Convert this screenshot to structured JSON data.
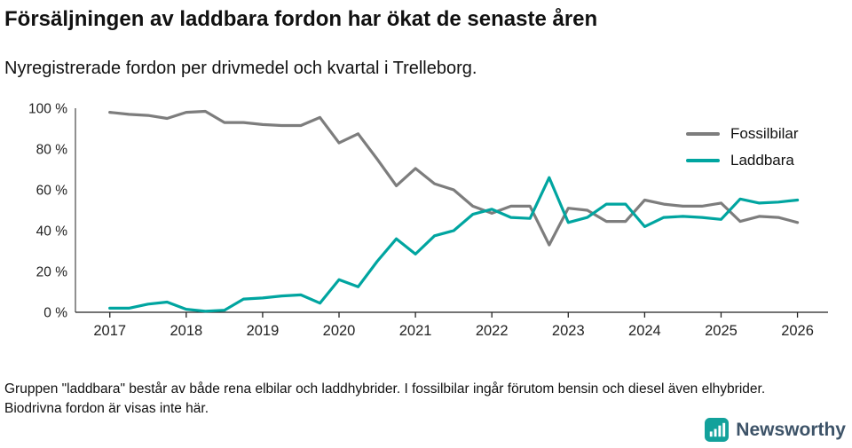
{
  "header": {
    "title": "Försäljningen av laddbara fordon har ökat de senaste åren",
    "subtitle": "Nyregistrerade fordon per drivmedel och kvartal i Trelleborg."
  },
  "chart_data": {
    "type": "line",
    "title": "Försäljningen av laddbara fordon har ökat de senaste åren",
    "subtitle": "Nyregistrerade fordon per drivmedel och kvartal i Trelleborg.",
    "x_unit": "quarter",
    "x": [
      2017,
      2017.25,
      2017.5,
      2017.75,
      2018,
      2018.25,
      2018.5,
      2018.75,
      2019,
      2019.25,
      2019.5,
      2019.75,
      2020,
      2020.25,
      2020.5,
      2020.75,
      2021,
      2021.25,
      2021.5,
      2021.75,
      2022,
      2022.25,
      2022.5,
      2022.75,
      2023,
      2023.25,
      2023.5,
      2023.75,
      2024,
      2024.25,
      2024.5,
      2024.75,
      2025,
      2025.25,
      2025.5,
      2025.75,
      2026
    ],
    "series": [
      {
        "name": "Fossilbilar",
        "color": "#7d7d7d",
        "values": [
          98,
          97,
          96.5,
          95,
          98,
          98.5,
          93,
          93,
          92,
          91.5,
          91.5,
          95.5,
          83,
          87.5,
          75,
          62,
          70.5,
          63,
          60,
          52,
          48.5,
          52,
          52,
          33,
          51,
          50,
          44.5,
          44.5,
          55,
          53,
          52,
          52,
          53.5,
          44.5,
          47,
          46.5,
          44
        ]
      },
      {
        "name": "Laddbara",
        "color": "#00a5a0",
        "values": [
          2,
          2,
          4,
          5,
          1.5,
          0.5,
          1,
          6.5,
          7,
          8,
          8.5,
          4.5,
          16,
          12.5,
          25,
          36,
          28.5,
          37.5,
          40,
          48,
          50.5,
          46.5,
          46,
          66,
          44,
          46.5,
          53,
          53,
          42,
          46.5,
          47,
          46.5,
          45.5,
          55.5,
          53.5,
          54,
          55
        ]
      }
    ],
    "xlim": [
      2016.55,
      2026.4
    ],
    "ylim": [
      0,
      100
    ],
    "y_ticks": [
      0,
      20,
      40,
      60,
      80,
      100
    ],
    "y_tick_suffix": " %",
    "x_ticks": [
      2017,
      2018,
      2019,
      2020,
      2021,
      2022,
      2023,
      2024,
      2025,
      2026
    ],
    "grid": false,
    "legend_position": "top-right",
    "axis_color": "#222222"
  },
  "footnote": "Gruppen \"laddbara\" består av både rena elbilar och laddhybrider. I fossilbilar ingår förutom bensin och diesel även elhybrider. Biodrivna fordon är visas inte här.",
  "logo": {
    "text": "Newsworthy",
    "icon_color": "#12a19b",
    "text_color": "#3d5368"
  }
}
